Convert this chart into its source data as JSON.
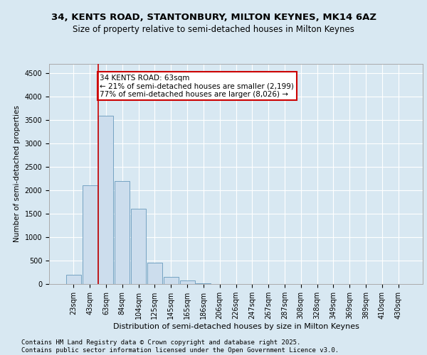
{
  "title1": "34, KENTS ROAD, STANTONBURY, MILTON KEYNES, MK14 6AZ",
  "title2": "Size of property relative to semi-detached houses in Milton Keynes",
  "xlabel": "Distribution of semi-detached houses by size in Milton Keynes",
  "ylabel": "Number of semi-detached properties",
  "categories": [
    "23sqm",
    "43sqm",
    "63sqm",
    "84sqm",
    "104sqm",
    "125sqm",
    "145sqm",
    "165sqm",
    "186sqm",
    "206sqm",
    "226sqm",
    "247sqm",
    "267sqm",
    "287sqm",
    "308sqm",
    "328sqm",
    "349sqm",
    "369sqm",
    "389sqm",
    "410sqm",
    "430sqm"
  ],
  "values": [
    200,
    2100,
    3600,
    2200,
    1600,
    450,
    150,
    80,
    20,
    5,
    2,
    1,
    1,
    0,
    0,
    0,
    0,
    0,
    0,
    0,
    0
  ],
  "bar_color": "#ccdded",
  "bar_edge_color": "#6699bb",
  "highlight_index": 2,
  "highlight_line_color": "#cc0000",
  "annotation_text": "34 KENTS ROAD: 63sqm\n← 21% of semi-detached houses are smaller (2,199)\n77% of semi-detached houses are larger (8,026) →",
  "annotation_box_color": "#cc0000",
  "ylim": [
    0,
    4700
  ],
  "yticks": [
    0,
    500,
    1000,
    1500,
    2000,
    2500,
    3000,
    3500,
    4000,
    4500
  ],
  "background_color": "#d8e8f2",
  "plot_bg_color": "#d8e8f2",
  "footer": "Contains HM Land Registry data © Crown copyright and database right 2025.\nContains public sector information licensed under the Open Government Licence v3.0.",
  "title1_fontsize": 9.5,
  "title2_fontsize": 8.5,
  "xlabel_fontsize": 8,
  "ylabel_fontsize": 7.5,
  "tick_fontsize": 7,
  "annotation_fontsize": 7.5,
  "footer_fontsize": 6.5
}
